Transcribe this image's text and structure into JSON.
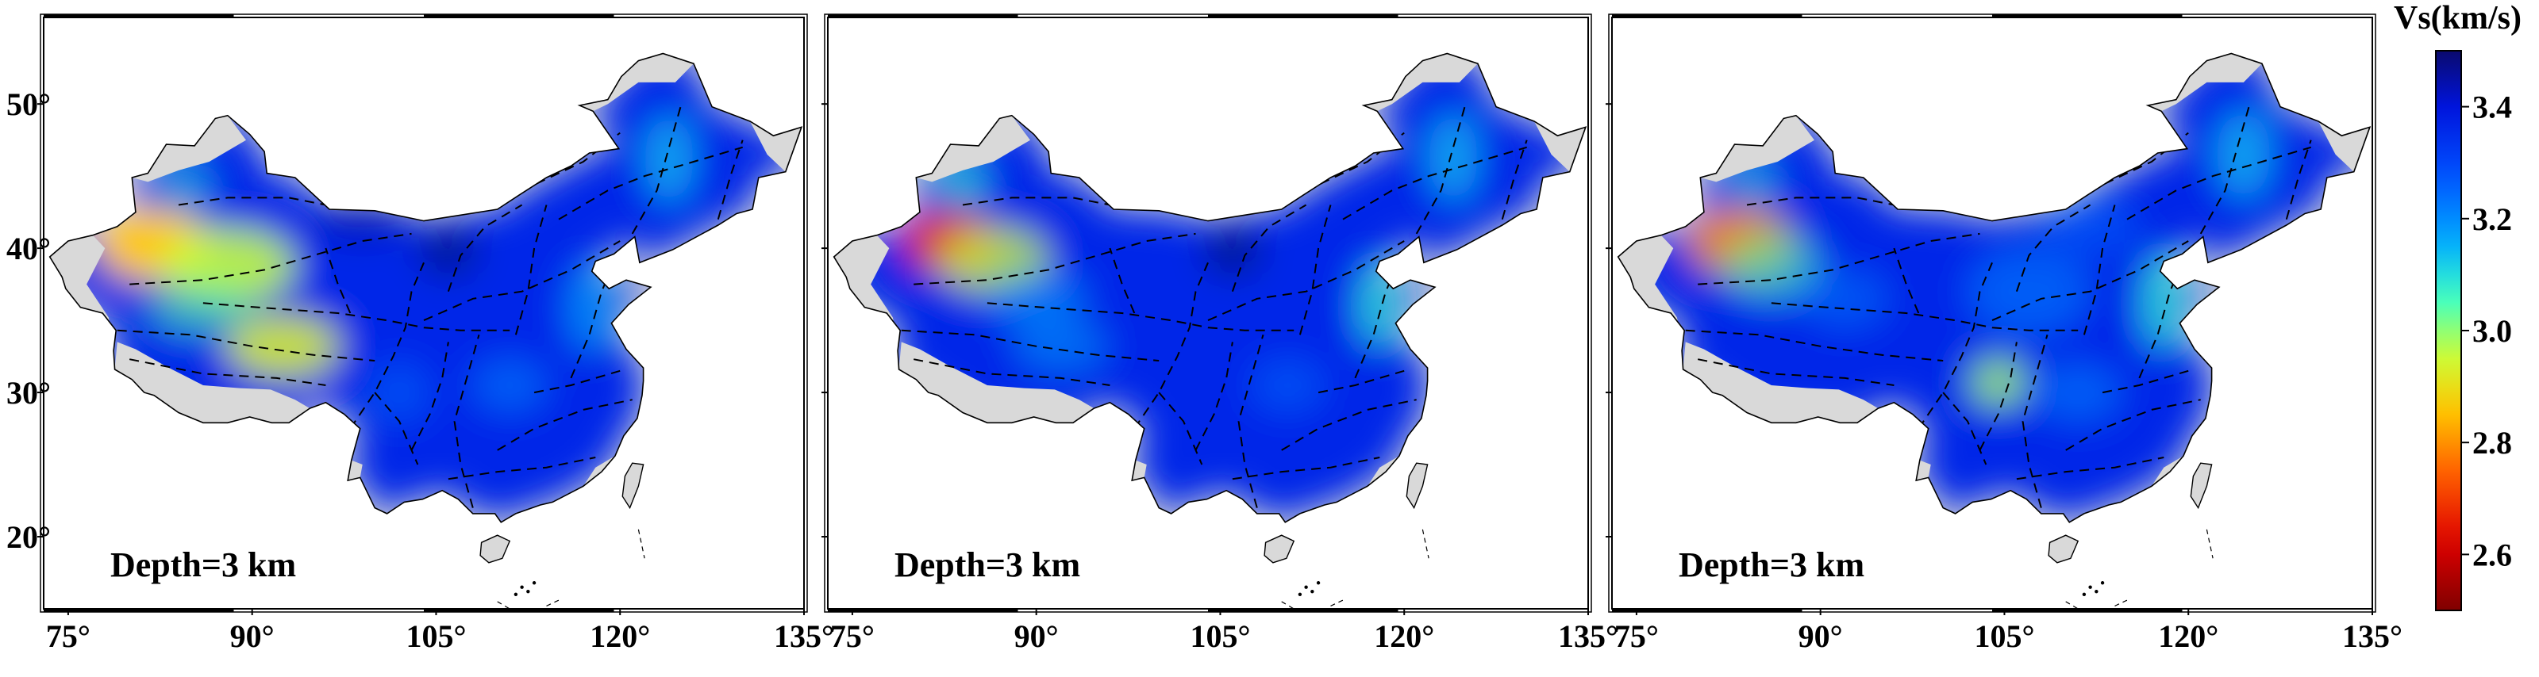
{
  "panels": [
    {
      "id": "panel-1",
      "label": "Depth=3 km",
      "anomalies": [
        {
          "cx": 82,
          "cy": 40.2,
          "rx": 4.6,
          "ry": 2.5,
          "v": 2.86,
          "w": 1.0
        },
        {
          "cx": 88,
          "cy": 38.8,
          "rx": 5.5,
          "ry": 2.6,
          "v": 2.96,
          "w": 0.9
        },
        {
          "cx": 92.5,
          "cy": 33.2,
          "rx": 4.6,
          "ry": 2.2,
          "v": 2.93,
          "w": 0.9
        },
        {
          "cx": 86,
          "cy": 35.8,
          "rx": 4.5,
          "ry": 1.8,
          "v": 3.04,
          "w": 0.6
        },
        {
          "cx": 84.5,
          "cy": 44.2,
          "rx": 2.2,
          "ry": 1.6,
          "v": 3.1,
          "w": 0.6
        },
        {
          "cx": 124,
          "cy": 46.2,
          "rx": 2.0,
          "ry": 3.0,
          "v": 3.14,
          "w": 0.8
        },
        {
          "cx": 117.5,
          "cy": 35.8,
          "rx": 1.7,
          "ry": 3.0,
          "v": 3.16,
          "w": 0.7
        },
        {
          "cx": 111,
          "cy": 30.5,
          "rx": 3.0,
          "ry": 1.8,
          "v": 3.22,
          "w": 0.6
        },
        {
          "cx": 102,
          "cy": 30.0,
          "rx": 2.5,
          "ry": 2.0,
          "v": 3.24,
          "w": 0.5
        },
        {
          "cx": 106,
          "cy": 39.8,
          "rx": 2.4,
          "ry": 1.8,
          "v": 3.48,
          "w": 0.8
        },
        {
          "cx": 99,
          "cy": 42.0,
          "rx": 4.0,
          "ry": 1.5,
          "v": 3.45,
          "w": 0.6
        }
      ]
    },
    {
      "id": "panel-2",
      "label": "Depth=3 km",
      "anomalies": [
        {
          "cx": 83,
          "cy": 40.4,
          "rx": 3.7,
          "ry": 2.1,
          "v": 2.63,
          "w": 1.0
        },
        {
          "cx": 86.5,
          "cy": 39.2,
          "rx": 4.5,
          "ry": 2.3,
          "v": 2.95,
          "w": 0.8
        },
        {
          "cx": 90,
          "cy": 36.5,
          "rx": 4.0,
          "ry": 2.0,
          "v": 3.18,
          "w": 0.6
        },
        {
          "cx": 92,
          "cy": 33.2,
          "rx": 3.8,
          "ry": 1.8,
          "v": 3.16,
          "w": 0.5
        },
        {
          "cx": 84,
          "cy": 44.5,
          "rx": 2.0,
          "ry": 1.5,
          "v": 3.08,
          "w": 0.7
        },
        {
          "cx": 124,
          "cy": 46.3,
          "rx": 2.0,
          "ry": 3.0,
          "v": 3.14,
          "w": 0.8
        },
        {
          "cx": 117.8,
          "cy": 36.0,
          "rx": 1.5,
          "ry": 2.8,
          "v": 3.08,
          "w": 0.8
        },
        {
          "cx": 110.5,
          "cy": 30.5,
          "rx": 3.0,
          "ry": 1.8,
          "v": 3.24,
          "w": 0.5
        },
        {
          "cx": 106,
          "cy": 39.8,
          "rx": 2.4,
          "ry": 1.8,
          "v": 3.48,
          "w": 0.8
        }
      ]
    },
    {
      "id": "panel-3",
      "label": "Depth=3 km",
      "anomalies": [
        {
          "cx": 83.5,
          "cy": 40.6,
          "rx": 3.0,
          "ry": 1.7,
          "v": 2.5,
          "w": 1.0
        },
        {
          "cx": 83.5,
          "cy": 40.4,
          "rx": 4.3,
          "ry": 2.4,
          "v": 2.8,
          "w": 0.85
        },
        {
          "cx": 86,
          "cy": 38.8,
          "rx": 4.0,
          "ry": 2.4,
          "v": 3.05,
          "w": 0.6
        },
        {
          "cx": 92,
          "cy": 36.5,
          "rx": 3.5,
          "ry": 2.0,
          "v": 3.22,
          "w": 0.5
        },
        {
          "cx": 104.5,
          "cy": 30.7,
          "rx": 1.6,
          "ry": 1.2,
          "v": 2.8,
          "w": 1.0
        },
        {
          "cx": 104.5,
          "cy": 30.7,
          "rx": 2.5,
          "ry": 1.8,
          "v": 3.02,
          "w": 0.7
        },
        {
          "cx": 84.5,
          "cy": 44.5,
          "rx": 2.0,
          "ry": 1.5,
          "v": 3.1,
          "w": 0.6
        },
        {
          "cx": 124.5,
          "cy": 46.5,
          "rx": 2.2,
          "ry": 3.0,
          "v": 3.14,
          "w": 0.8
        },
        {
          "cx": 117.8,
          "cy": 36.2,
          "rx": 1.6,
          "ry": 3.2,
          "v": 3.08,
          "w": 0.8
        },
        {
          "cx": 107,
          "cy": 37.0,
          "rx": 5.0,
          "ry": 3.0,
          "v": 3.22,
          "w": 0.6
        },
        {
          "cx": 112,
          "cy": 41.5,
          "rx": 4.0,
          "ry": 2.0,
          "v": 3.25,
          "w": 0.5
        },
        {
          "cx": 111,
          "cy": 30.0,
          "rx": 3.5,
          "ry": 2.0,
          "v": 3.22,
          "w": 0.6
        }
      ]
    }
  ],
  "axes": {
    "lon_range": [
      73,
      135
    ],
    "lat_range": [
      15,
      56
    ],
    "x_ticks": [
      75,
      90,
      105,
      120,
      135
    ],
    "x_tick_labels": [
      "75°",
      "90°",
      "105°",
      "120°",
      "135°"
    ],
    "y_ticks": [
      50,
      40,
      30,
      20
    ],
    "y_tick_labels": [
      "50°",
      "40°",
      "30°",
      "20°"
    ]
  },
  "colorbar": {
    "title": "Vs(km/s)",
    "range": [
      2.5,
      3.5
    ],
    "ticks": [
      3.4,
      3.2,
      3.0,
      2.8,
      2.6
    ],
    "tick_labels": [
      "3.4",
      "3.2",
      "3.0",
      "2.8",
      "2.6"
    ],
    "colormap": "jet-reversed (low = dark red, high = dark blue)"
  },
  "background_velocity": 3.36,
  "colors": {
    "no_data_land": "#d9d9d9",
    "coast_line": "#000000",
    "block_boundary": "#000000"
  }
}
